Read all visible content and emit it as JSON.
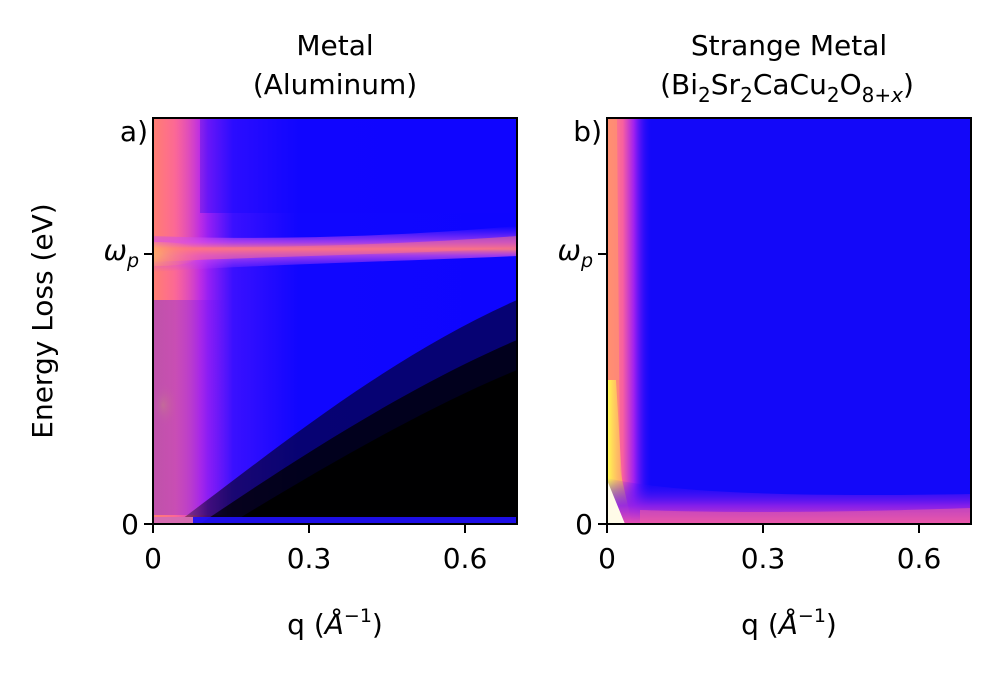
{
  "chart_data": [
    {
      "type": "heatmap",
      "panel_label": "a)",
      "title_line1": "Metal",
      "title_line2": "(Aluminum)",
      "xlabel": {
        "main": "q (",
        "unit": "Å",
        "exp": "−1",
        "close": ")"
      },
      "ylabel": "Energy Loss (eV)",
      "xlim": [
        0,
        0.7
      ],
      "xticks": [
        {
          "value": 0,
          "label": "0"
        },
        {
          "value": 0.3,
          "label": "0.3"
        },
        {
          "value": 0.6,
          "label": "0.6"
        }
      ],
      "yticks": [
        {
          "value": 0,
          "label": "0"
        },
        {
          "value": "omega_p",
          "label": "ω",
          "sub": "p"
        }
      ],
      "colormap": "gnuplot2",
      "features": [
        "plasmon band at omega_p across all q",
        "strong intensity near q=0",
        "elastic line at 0 eV"
      ]
    },
    {
      "type": "heatmap",
      "panel_label": "b)",
      "title_line1": "Strange Metal",
      "title_parts": [
        {
          "t": "(Bi"
        },
        {
          "t": "2",
          "sub": true
        },
        {
          "t": "Sr"
        },
        {
          "t": "2",
          "sub": true
        },
        {
          "t": "CaCu"
        },
        {
          "t": "2",
          "sub": true
        },
        {
          "t": "O"
        },
        {
          "t": "8+",
          "sub": true
        },
        {
          "t": "x",
          "sub": true,
          "ital": true
        },
        {
          "t": ")"
        }
      ],
      "xlabel": {
        "main": "q (",
        "unit": "Å",
        "exp": "−1",
        "close": ")"
      },
      "xlim": [
        0,
        0.7
      ],
      "xticks": [
        {
          "value": 0,
          "label": "0"
        },
        {
          "value": 0.3,
          "label": "0.3"
        },
        {
          "value": 0.6,
          "label": "0.6"
        }
      ],
      "yticks": [
        {
          "value": 0,
          "label": "0"
        },
        {
          "value": "omega_p",
          "label": "ω",
          "sub": "p"
        }
      ],
      "colormap": "gnuplot2",
      "features": [
        "featureless continuum",
        "intensity concentrated at low q",
        "elastic line at 0 eV"
      ]
    }
  ]
}
